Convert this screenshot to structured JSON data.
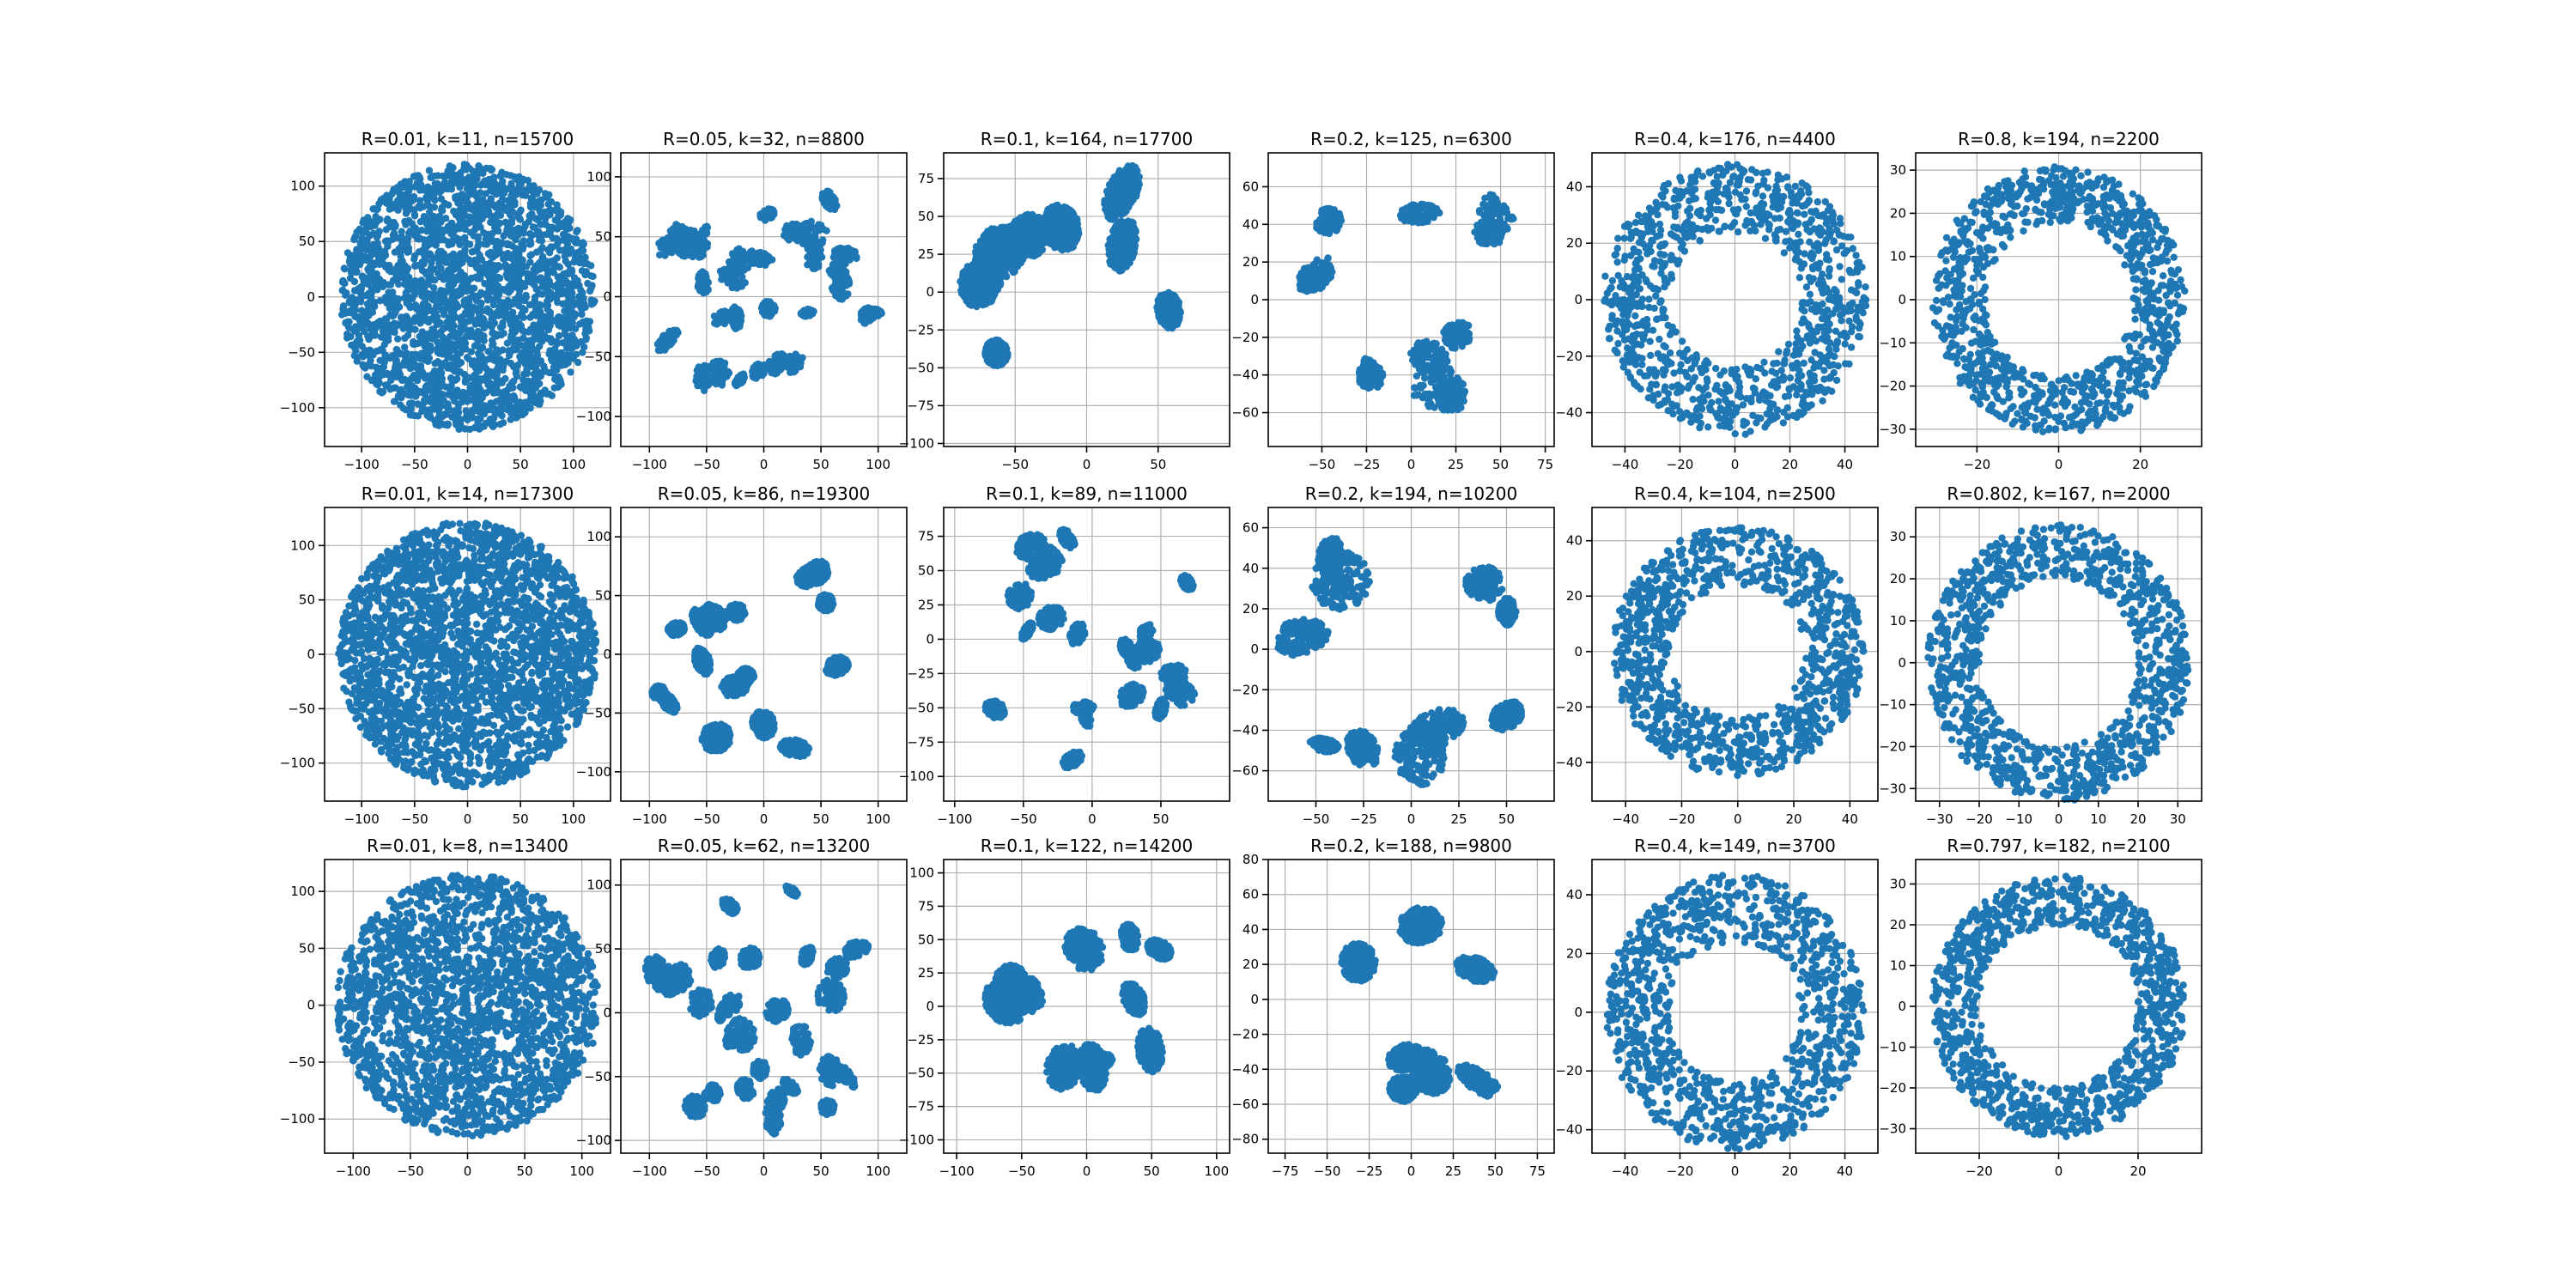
{
  "figure": {
    "background": "#ffffff",
    "marker_color": "#1f77b4",
    "grid_color": "#b0b0b0",
    "axes_color": "#000000"
  },
  "chart_data": [
    {
      "type": "scatter",
      "title": "R=0.01,  k=11, n=15700",
      "shape": "disk",
      "radius": 120,
      "hole": 0,
      "blobs": 0,
      "n": 15700,
      "xlim": [
        -135,
        135
      ],
      "ylim": [
        -135,
        130
      ],
      "xticks": [
        -100,
        -50,
        0,
        50,
        100
      ],
      "yticks": [
        -100,
        -50,
        0,
        50,
        100
      ],
      "grid": true
    },
    {
      "type": "scatter",
      "title": "R=0.05,  k=32, n=8800",
      "shape": "disk",
      "radius": 110,
      "hole": 0,
      "blobs": 32,
      "n": 8800,
      "xlim": [
        -125,
        125
      ],
      "ylim": [
        -125,
        120
      ],
      "xticks": [
        -100,
        -50,
        0,
        50,
        100
      ],
      "yticks": [
        -100,
        -50,
        0,
        50,
        100
      ],
      "grid": true
    },
    {
      "type": "scatter",
      "title": "R=0.1,  k=164, n=17700",
      "shape": "ring",
      "radius": 90,
      "hole": 25,
      "blobs": 9,
      "n": 17700,
      "xlim": [
        -100,
        100
      ],
      "ylim": [
        -102,
        92
      ],
      "xticks": [
        -50,
        0,
        50
      ],
      "yticks": [
        -100,
        -75,
        -50,
        -25,
        0,
        25,
        50,
        75
      ],
      "grid": true
    },
    {
      "type": "scatter",
      "title": "R=0.2,  k=125, n=6300",
      "shape": "ring",
      "radius": 72,
      "hole": 20,
      "blobs": 11,
      "n": 6300,
      "xlim": [
        -80,
        80
      ],
      "ylim": [
        -78,
        78
      ],
      "xticks": [
        -50,
        -25,
        0,
        25,
        50,
        75
      ],
      "yticks": [
        -60,
        -40,
        -20,
        0,
        20,
        40,
        60
      ],
      "grid": true
    },
    {
      "type": "scatter",
      "title": "R=0.4,  k=176, n=4400",
      "shape": "ring",
      "radius": 48,
      "hole": 24,
      "blobs": 0,
      "n": 4400,
      "xlim": [
        -52,
        52
      ],
      "ylim": [
        -52,
        52
      ],
      "xticks": [
        -40,
        -20,
        0,
        20,
        40
      ],
      "yticks": [
        -40,
        -20,
        0,
        20,
        40
      ],
      "grid": true
    },
    {
      "type": "scatter",
      "title": "R=0.8,  k=194, n=2200",
      "shape": "ring",
      "radius": 31,
      "hole": 18,
      "blobs": 0,
      "n": 2200,
      "xlim": [
        -35,
        35
      ],
      "ylim": [
        -34,
        34
      ],
      "xticks": [
        -20,
        0,
        20
      ],
      "yticks": [
        -30,
        -20,
        -10,
        0,
        10,
        20,
        30
      ],
      "grid": true
    },
    {
      "type": "scatter",
      "title": "R=0.01,  k=14, n=17300",
      "shape": "disk",
      "radius": 122,
      "hole": 0,
      "blobs": 0,
      "n": 17300,
      "xlim": [
        -135,
        135
      ],
      "ylim": [
        -135,
        135
      ],
      "xticks": [
        -100,
        -50,
        0,
        50,
        100
      ],
      "yticks": [
        -100,
        -50,
        0,
        50,
        100
      ],
      "grid": true
    },
    {
      "type": "scatter",
      "title": "R=0.05,  k=86, n=19300",
      "shape": "disk",
      "radius": 110,
      "hole": 0,
      "blobs": 16,
      "n": 19300,
      "xlim": [
        -125,
        125
      ],
      "ylim": [
        -125,
        125
      ],
      "xticks": [
        -100,
        -50,
        0,
        50,
        100
      ],
      "yticks": [
        -100,
        -50,
        0,
        50,
        100
      ],
      "grid": true
    },
    {
      "type": "scatter",
      "title": "R=0.1,  k=89, n=11000",
      "shape": "disk",
      "radius": 100,
      "hole": 0,
      "blobs": 20,
      "n": 11000,
      "xlim": [
        -108,
        100
      ],
      "ylim": [
        -118,
        96
      ],
      "xticks": [
        -100,
        -50,
        0,
        50
      ],
      "yticks": [
        -100,
        -75,
        -50,
        -25,
        0,
        25,
        50,
        75
      ],
      "grid": true
    },
    {
      "type": "scatter",
      "title": "R=0.2,  k=194, n=10200",
      "shape": "ring",
      "radius": 70,
      "hole": 30,
      "blobs": 10,
      "n": 10200,
      "xlim": [
        -75,
        75
      ],
      "ylim": [
        -75,
        70
      ],
      "xticks": [
        -50,
        -25,
        0,
        25,
        50
      ],
      "yticks": [
        -60,
        -40,
        -20,
        0,
        20,
        40,
        60
      ],
      "grid": true
    },
    {
      "type": "scatter",
      "title": "R=0.4,  k=104, n=2500",
      "shape": "ring",
      "radius": 45,
      "hole": 24,
      "blobs": 0,
      "n": 2500,
      "xlim": [
        -52,
        50
      ],
      "ylim": [
        -54,
        52
      ],
      "xticks": [
        -40,
        -20,
        0,
        20,
        40
      ],
      "yticks": [
        -40,
        -20,
        0,
        20,
        40
      ],
      "grid": true
    },
    {
      "type": "scatter",
      "title": "R=0.802,  k=167, n=2000",
      "shape": "ring",
      "radius": 33,
      "hole": 20,
      "blobs": 0,
      "n": 2000,
      "xlim": [
        -36,
        36
      ],
      "ylim": [
        -33,
        37
      ],
      "xticks": [
        -30,
        -20,
        -10,
        0,
        10,
        20,
        30
      ],
      "yticks": [
        -30,
        -20,
        -10,
        0,
        10,
        20,
        30
      ],
      "grid": true
    },
    {
      "type": "scatter",
      "title": "R=0.01,  k=8, n=13400",
      "shape": "disk",
      "radius": 115,
      "hole": 0,
      "blobs": 0,
      "n": 13400,
      "xlim": [
        -125,
        125
      ],
      "ylim": [
        -130,
        128
      ],
      "xticks": [
        -100,
        -50,
        0,
        50,
        100
      ],
      "yticks": [
        -100,
        -50,
        0,
        50,
        100
      ],
      "grid": true
    },
    {
      "type": "scatter",
      "title": "R=0.05,  k=62, n=13200",
      "shape": "disk",
      "radius": 110,
      "hole": 0,
      "blobs": 28,
      "n": 13200,
      "xlim": [
        -125,
        125
      ],
      "ylim": [
        -110,
        120
      ],
      "xticks": [
        -100,
        -50,
        0,
        50,
        100
      ],
      "yticks": [
        -100,
        -50,
        0,
        50,
        100
      ],
      "grid": true
    },
    {
      "type": "scatter",
      "title": "R=0.1,  k=122, n=14200",
      "shape": "ring",
      "radius": 85,
      "hole": 22,
      "blobs": 12,
      "n": 14200,
      "xlim": [
        -110,
        110
      ],
      "ylim": [
        -110,
        110
      ],
      "xticks": [
        -100,
        -50,
        0,
        50,
        100
      ],
      "yticks": [
        -100,
        -75,
        -50,
        -25,
        0,
        25,
        50,
        75,
        100
      ],
      "grid": true
    },
    {
      "type": "scatter",
      "title": "R=0.2,  k=188, n=9800",
      "shape": "ring",
      "radius": 72,
      "hole": 22,
      "blobs": 7,
      "n": 9800,
      "xlim": [
        -85,
        85
      ],
      "ylim": [
        -88,
        80
      ],
      "xticks": [
        -75,
        -50,
        -25,
        0,
        25,
        50,
        75
      ],
      "yticks": [
        -80,
        -60,
        -40,
        -20,
        0,
        20,
        40,
        60,
        80
      ],
      "grid": true
    },
    {
      "type": "scatter",
      "title": "R=0.4,  k=149, n=3700",
      "shape": "ring",
      "radius": 47,
      "hole": 24,
      "blobs": 0,
      "n": 3700,
      "xlim": [
        -52,
        52
      ],
      "ylim": [
        -48,
        52
      ],
      "xticks": [
        -40,
        -20,
        0,
        20,
        40
      ],
      "yticks": [
        -40,
        -20,
        0,
        20,
        40
      ],
      "grid": true
    },
    {
      "type": "scatter",
      "title": "R=0.797,  k=182, n=2100",
      "shape": "ring",
      "radius": 32,
      "hole": 20,
      "blobs": 0,
      "n": 2100,
      "xlim": [
        -36,
        36
      ],
      "ylim": [
        -36,
        36
      ],
      "xticks": [
        -20,
        0,
        20
      ],
      "yticks": [
        -30,
        -20,
        -10,
        0,
        10,
        20,
        30
      ],
      "grid": true
    }
  ]
}
